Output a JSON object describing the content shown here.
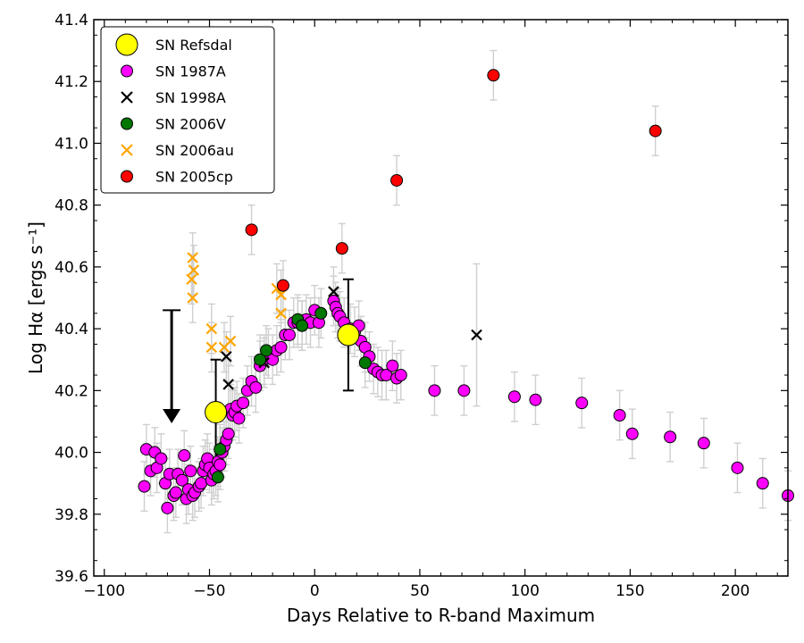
{
  "chart_data": {
    "type": "scatter",
    "title": "",
    "xlabel": "Days Relative to R-band Maximum",
    "ylabel": "Log Hα [ergs s⁻¹]",
    "xlim": [
      -105,
      225
    ],
    "ylim": [
      39.6,
      41.4
    ],
    "x_ticks": [
      -100,
      -50,
      0,
      50,
      100,
      150,
      200
    ],
    "y_ticks": [
      39.6,
      39.8,
      40.0,
      40.2,
      40.4,
      40.6,
      40.8,
      41.0,
      41.2,
      41.4
    ],
    "x_tick_labels": [
      "−100",
      "−50",
      "0",
      "50",
      "100",
      "150",
      "200"
    ],
    "y_tick_labels": [
      "39.6",
      "39.8",
      "40.0",
      "40.2",
      "40.4",
      "40.6",
      "40.8",
      "41.0",
      "41.2",
      "41.4"
    ],
    "legend_position": "top-left",
    "upper_limit": {
      "x": -68,
      "y_top": 40.46,
      "y_head": 40.1,
      "color": "#000000"
    },
    "series": [
      {
        "name": "SN Refsdal",
        "marker": "circle-large",
        "color": "#ffff00",
        "points": [
          {
            "x": -47,
            "y": 40.13,
            "yerr": 0.17
          },
          {
            "x": 16,
            "y": 40.38,
            "yerr": 0.18
          }
        ]
      },
      {
        "name": "SN 1987A",
        "marker": "circle",
        "color": "#ff00ff",
        "points": [
          {
            "x": -81,
            "y": 39.89,
            "yerr": 0.08
          },
          {
            "x": -80,
            "y": 40.01,
            "yerr": 0.08
          },
          {
            "x": -78,
            "y": 39.94,
            "yerr": 0.08
          },
          {
            "x": -76,
            "y": 40.0,
            "yerr": 0.08
          },
          {
            "x": -75,
            "y": 39.95,
            "yerr": 0.08
          },
          {
            "x": -73,
            "y": 39.98,
            "yerr": 0.08
          },
          {
            "x": -71,
            "y": 39.9,
            "yerr": 0.08
          },
          {
            "x": -70,
            "y": 39.82,
            "yerr": 0.08
          },
          {
            "x": -69,
            "y": 39.93,
            "yerr": 0.08
          },
          {
            "x": -67,
            "y": 39.86,
            "yerr": 0.08
          },
          {
            "x": -66,
            "y": 39.87,
            "yerr": 0.08
          },
          {
            "x": -65,
            "y": 39.93,
            "yerr": 0.08
          },
          {
            "x": -63,
            "y": 39.91,
            "yerr": 0.08
          },
          {
            "x": -62,
            "y": 39.99,
            "yerr": 0.08
          },
          {
            "x": -61,
            "y": 39.85,
            "yerr": 0.08
          },
          {
            "x": -60,
            "y": 39.88,
            "yerr": 0.08
          },
          {
            "x": -59,
            "y": 39.94,
            "yerr": 0.08
          },
          {
            "x": -58,
            "y": 39.86,
            "yerr": 0.08
          },
          {
            "x": -57,
            "y": 39.87,
            "yerr": 0.08
          },
          {
            "x": -55,
            "y": 39.89,
            "yerr": 0.08
          },
          {
            "x": -54,
            "y": 39.9,
            "yerr": 0.08
          },
          {
            "x": -53,
            "y": 39.94,
            "yerr": 0.08
          },
          {
            "x": -52,
            "y": 39.96,
            "yerr": 0.08
          },
          {
            "x": -51,
            "y": 39.98,
            "yerr": 0.08
          },
          {
            "x": -50,
            "y": 39.95,
            "yerr": 0.08
          },
          {
            "x": -49,
            "y": 39.91,
            "yerr": 0.08
          },
          {
            "x": -48,
            "y": 39.93,
            "yerr": 0.08
          },
          {
            "x": -47,
            "y": 39.94,
            "yerr": 0.08
          },
          {
            "x": -46,
            "y": 39.97,
            "yerr": 0.08
          },
          {
            "x": -45,
            "y": 39.96,
            "yerr": 0.08
          },
          {
            "x": -44,
            "y": 40.0,
            "yerr": 0.08
          },
          {
            "x": -43,
            "y": 40.02,
            "yerr": 0.08
          },
          {
            "x": -42,
            "y": 40.04,
            "yerr": 0.08
          },
          {
            "x": -41,
            "y": 40.06,
            "yerr": 0.08
          },
          {
            "x": -40,
            "y": 40.14,
            "yerr": 0.08
          },
          {
            "x": -39,
            "y": 40.12,
            "yerr": 0.08
          },
          {
            "x": -38,
            "y": 40.13,
            "yerr": 0.08
          },
          {
            "x": -37,
            "y": 40.15,
            "yerr": 0.08
          },
          {
            "x": -36,
            "y": 40.11,
            "yerr": 0.08
          },
          {
            "x": -34,
            "y": 40.16,
            "yerr": 0.08
          },
          {
            "x": -32,
            "y": 40.2,
            "yerr": 0.08
          },
          {
            "x": -30,
            "y": 40.23,
            "yerr": 0.08
          },
          {
            "x": -28,
            "y": 40.21,
            "yerr": 0.08
          },
          {
            "x": -26,
            "y": 40.28,
            "yerr": 0.08
          },
          {
            "x": -24,
            "y": 40.3,
            "yerr": 0.08
          },
          {
            "x": -22,
            "y": 40.32,
            "yerr": 0.08
          },
          {
            "x": -20,
            "y": 40.3,
            "yerr": 0.08
          },
          {
            "x": -18,
            "y": 40.33,
            "yerr": 0.08
          },
          {
            "x": -16,
            "y": 40.34,
            "yerr": 0.08
          },
          {
            "x": -14,
            "y": 40.38,
            "yerr": 0.08
          },
          {
            "x": -12,
            "y": 40.38,
            "yerr": 0.08
          },
          {
            "x": -10,
            "y": 40.42,
            "yerr": 0.08
          },
          {
            "x": -8,
            "y": 40.42,
            "yerr": 0.08
          },
          {
            "x": -6,
            "y": 40.41,
            "yerr": 0.08
          },
          {
            "x": -4,
            "y": 40.43,
            "yerr": 0.08
          },
          {
            "x": -2,
            "y": 40.42,
            "yerr": 0.08
          },
          {
            "x": 0,
            "y": 40.46,
            "yerr": 0.08
          },
          {
            "x": 2,
            "y": 40.42,
            "yerr": 0.08
          },
          {
            "x": 9,
            "y": 40.49,
            "yerr": 0.08
          },
          {
            "x": 10,
            "y": 40.47,
            "yerr": 0.08
          },
          {
            "x": 11,
            "y": 40.45,
            "yerr": 0.08
          },
          {
            "x": 12,
            "y": 40.44,
            "yerr": 0.08
          },
          {
            "x": 14,
            "y": 40.42,
            "yerr": 0.08
          },
          {
            "x": 17,
            "y": 40.4,
            "yerr": 0.08
          },
          {
            "x": 19,
            "y": 40.39,
            "yerr": 0.08
          },
          {
            "x": 21,
            "y": 40.41,
            "yerr": 0.08
          },
          {
            "x": 22,
            "y": 40.36,
            "yerr": 0.08
          },
          {
            "x": 24,
            "y": 40.34,
            "yerr": 0.08
          },
          {
            "x": 26,
            "y": 40.31,
            "yerr": 0.08
          },
          {
            "x": 28,
            "y": 40.27,
            "yerr": 0.08
          },
          {
            "x": 30,
            "y": 40.26,
            "yerr": 0.08
          },
          {
            "x": 32,
            "y": 40.25,
            "yerr": 0.08
          },
          {
            "x": 34,
            "y": 40.25,
            "yerr": 0.08
          },
          {
            "x": 37,
            "y": 40.28,
            "yerr": 0.08
          },
          {
            "x": 39,
            "y": 40.24,
            "yerr": 0.08
          },
          {
            "x": 41,
            "y": 40.25,
            "yerr": 0.08
          },
          {
            "x": 57,
            "y": 40.2,
            "yerr": 0.08
          },
          {
            "x": 71,
            "y": 40.2,
            "yerr": 0.08
          },
          {
            "x": 95,
            "y": 40.18,
            "yerr": 0.08
          },
          {
            "x": 105,
            "y": 40.17,
            "yerr": 0.08
          },
          {
            "x": 127,
            "y": 40.16,
            "yerr": 0.08
          },
          {
            "x": 145,
            "y": 40.12,
            "yerr": 0.08
          },
          {
            "x": 151,
            "y": 40.06,
            "yerr": 0.08
          },
          {
            "x": 169,
            "y": 40.05,
            "yerr": 0.08
          },
          {
            "x": 185,
            "y": 40.03,
            "yerr": 0.08
          },
          {
            "x": 201,
            "y": 39.95,
            "yerr": 0.08
          },
          {
            "x": 213,
            "y": 39.9,
            "yerr": 0.08
          },
          {
            "x": 225,
            "y": 39.86,
            "yerr": 0.08
          }
        ]
      },
      {
        "name": "SN 1998A",
        "marker": "x",
        "color": "#000000",
        "points": [
          {
            "x": -42,
            "y": 40.31,
            "yerr": 0.08
          },
          {
            "x": -41,
            "y": 40.22,
            "yerr": 0.08
          },
          {
            "x": -24,
            "y": 40.29,
            "yerr": 0.08
          },
          {
            "x": 9,
            "y": 40.52,
            "yerr": 0.08
          },
          {
            "x": 77,
            "y": 40.38,
            "yerr": 0.23
          }
        ]
      },
      {
        "name": "SN 2006V",
        "marker": "circle",
        "color": "#007700",
        "points": [
          {
            "x": -46,
            "y": 39.92,
            "yerr": 0.08
          },
          {
            "x": -45,
            "y": 40.01,
            "yerr": 0.08
          },
          {
            "x": -26,
            "y": 40.3,
            "yerr": 0.08
          },
          {
            "x": -23,
            "y": 40.33,
            "yerr": 0.08
          },
          {
            "x": -8,
            "y": 40.43,
            "yerr": 0.08
          },
          {
            "x": -6,
            "y": 40.41,
            "yerr": 0.08
          },
          {
            "x": 3,
            "y": 40.45,
            "yerr": 0.08
          },
          {
            "x": 24,
            "y": 40.29,
            "yerr": 0.08
          }
        ]
      },
      {
        "name": "SN 2006au",
        "marker": "x",
        "color": "#ffa500",
        "points": [
          {
            "x": -58,
            "y": 40.63,
            "yerr": 0.08
          },
          {
            "x": -58.5,
            "y": 40.56,
            "yerr": 0.08
          },
          {
            "x": -58,
            "y": 40.5,
            "yerr": 0.08
          },
          {
            "x": -57.5,
            "y": 40.59,
            "yerr": 0.08
          },
          {
            "x": -49,
            "y": 40.4,
            "yerr": 0.08
          },
          {
            "x": -49,
            "y": 40.34,
            "yerr": 0.08
          },
          {
            "x": -43,
            "y": 40.34,
            "yerr": 0.08
          },
          {
            "x": -40,
            "y": 40.36,
            "yerr": 0.08
          },
          {
            "x": -18,
            "y": 40.53,
            "yerr": 0.08
          },
          {
            "x": -16,
            "y": 40.51,
            "yerr": 0.08
          },
          {
            "x": -16,
            "y": 40.45,
            "yerr": 0.08
          }
        ]
      },
      {
        "name": "SN 2005cp",
        "marker": "circle",
        "color": "#ff0000",
        "points": [
          {
            "x": -30,
            "y": 40.72,
            "yerr": 0.08
          },
          {
            "x": -15,
            "y": 40.54,
            "yerr": 0.08
          },
          {
            "x": 13,
            "y": 40.66,
            "yerr": 0.08
          },
          {
            "x": 39,
            "y": 40.88,
            "yerr": 0.08
          },
          {
            "x": 85,
            "y": 41.22,
            "yerr": 0.08
          },
          {
            "x": 162,
            "y": 41.04,
            "yerr": 0.08
          }
        ]
      }
    ]
  }
}
